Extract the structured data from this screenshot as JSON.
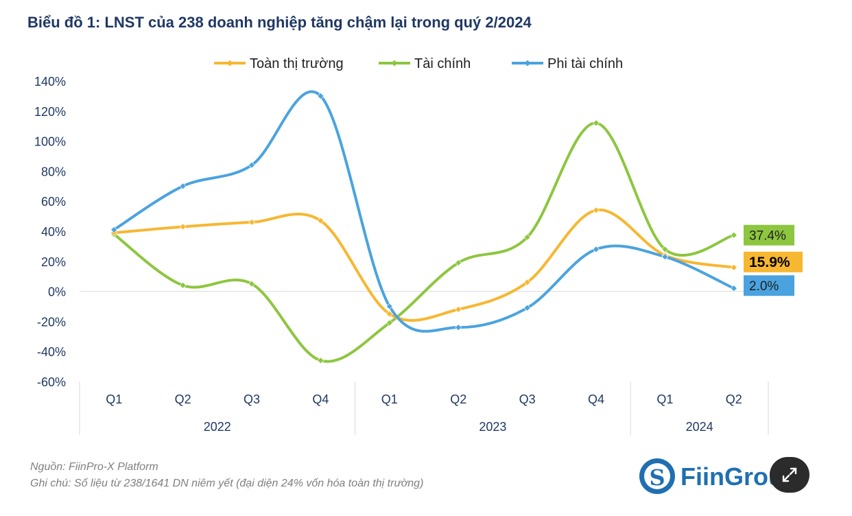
{
  "title": "Biểu đồ 1: LNST của 238 doanh nghiệp tăng chậm lại trong quý 2/2024",
  "footer": {
    "source": "Nguồn: FiinPro-X Platform",
    "note": "Ghi chú: Số liệu từ 238/1641 DN niêm yết (đại diện 24% vốn hóa toàn thị trường)"
  },
  "logo": {
    "text": "FiinGroup"
  },
  "colors": {
    "title": "#1f3864",
    "axis_text": "#1f3864"
  },
  "chart_data": {
    "type": "line",
    "smooth": true,
    "categories": [
      "Q1",
      "Q2",
      "Q3",
      "Q4",
      "Q1",
      "Q2",
      "Q3",
      "Q4",
      "Q1",
      "Q2"
    ],
    "groups": [
      {
        "label": "2022",
        "span": 4
      },
      {
        "label": "2023",
        "span": 4
      },
      {
        "label": "2024",
        "span": 2
      }
    ],
    "ylim": [
      -60,
      140
    ],
    "yticks": [
      -60,
      -40,
      -20,
      0,
      20,
      40,
      60,
      80,
      100,
      120,
      140
    ],
    "ytick_format": "percent",
    "legend_position": "top",
    "grid": false,
    "series": [
      {
        "name": "Toàn thị trường",
        "color": "#f7b731",
        "values": [
          39,
          43,
          46,
          47,
          -15,
          -12,
          6,
          54,
          24,
          15.9
        ],
        "end_label": "15.9%",
        "end_label_bg": "#f7b731",
        "end_label_color": "#000000",
        "end_label_bold": true
      },
      {
        "name": "Tài chính",
        "color": "#8dc63f",
        "values": [
          38,
          4,
          5,
          -46,
          -21,
          19,
          36,
          112,
          28,
          37.4
        ],
        "end_label": "37.4%",
        "end_label_bg": "#8dc63f",
        "end_label_color": "#1f1f1f",
        "end_label_bold": false
      },
      {
        "name": "Phi tài chính",
        "color": "#4aa3df",
        "values": [
          41,
          70,
          84,
          130,
          -10,
          -24,
          -11,
          28,
          23,
          2.0
        ],
        "end_label": "2.0%",
        "end_label_bg": "#4aa3df",
        "end_label_color": "#1f1f1f",
        "end_label_bold": false
      }
    ]
  }
}
